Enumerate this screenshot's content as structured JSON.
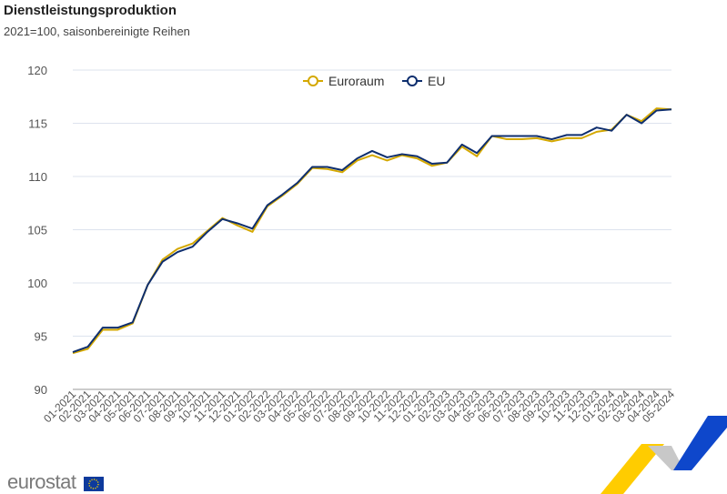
{
  "chart_data": {
    "type": "line",
    "title": "Dienstleistungsproduktion",
    "subtitle": "2021=100, saisonbereinigte Reihen",
    "xlabel": "",
    "ylabel": "",
    "ylim": [
      90,
      120
    ],
    "yticks": [
      90,
      95,
      100,
      105,
      110,
      115,
      120
    ],
    "grid": true,
    "legend_position": "top-center",
    "categories": [
      "01-2021",
      "02-2021",
      "03-2021",
      "04-2021",
      "05-2021",
      "06-2021",
      "07-2021",
      "08-2021",
      "09-2021",
      "10-2021",
      "11-2021",
      "12-2021",
      "01-2022",
      "02-2022",
      "03-2022",
      "04-2022",
      "05-2022",
      "06-2022",
      "07-2022",
      "08-2022",
      "09-2022",
      "10-2022",
      "11-2022",
      "12-2022",
      "01-2023",
      "02-2023",
      "03-2023",
      "04-2023",
      "05-2023",
      "06-2023",
      "07-2023",
      "08-2023",
      "09-2023",
      "10-2023",
      "11-2023",
      "12-2023",
      "01-2024",
      "02-2024",
      "03-2024",
      "04-2024",
      "05-2024"
    ],
    "series": [
      {
        "name": "Euroraum",
        "color": "#d4a800",
        "values": [
          93.4,
          93.8,
          95.6,
          95.6,
          96.2,
          99.8,
          102.2,
          103.2,
          103.7,
          104.9,
          106.1,
          105.4,
          104.8,
          107.2,
          108.2,
          109.3,
          110.8,
          110.7,
          110.4,
          111.5,
          112.0,
          111.5,
          112.0,
          111.7,
          111.0,
          111.3,
          112.8,
          111.9,
          113.8,
          113.5,
          113.5,
          113.6,
          113.3,
          113.6,
          113.6,
          114.2,
          114.4,
          115.8,
          115.2,
          116.4,
          116.3
        ]
      },
      {
        "name": "EU",
        "color": "#0e2e6e",
        "values": [
          93.5,
          94.0,
          95.8,
          95.8,
          96.3,
          99.8,
          102.0,
          102.9,
          103.4,
          104.8,
          106.0,
          105.6,
          105.1,
          107.3,
          108.3,
          109.4,
          110.9,
          110.9,
          110.6,
          111.7,
          112.4,
          111.8,
          112.1,
          111.9,
          111.2,
          111.3,
          113.0,
          112.2,
          113.8,
          113.8,
          113.8,
          113.8,
          113.5,
          113.9,
          113.9,
          114.6,
          114.3,
          115.8,
          115.0,
          116.2,
          116.3
        ]
      }
    ]
  },
  "branding": {
    "logo": "eurostat"
  }
}
